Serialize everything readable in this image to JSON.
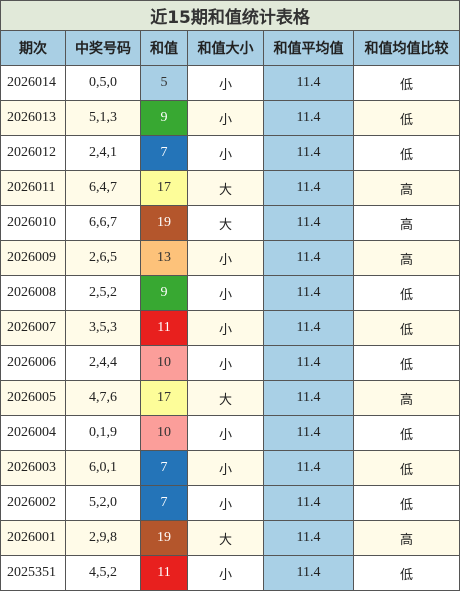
{
  "title": "近15期和值统计表格",
  "headers": [
    "期次",
    "中奖号码",
    "和值",
    "和值大小",
    "和值平均值",
    "和值均值比较"
  ],
  "rows": [
    {
      "period": "2026014",
      "numbers": "0,5,0",
      "sum": 5,
      "sum_color": "#a8cfe5",
      "size": "小",
      "avg": 11.4,
      "compare": "低"
    },
    {
      "period": "2026013",
      "numbers": "5,1,3",
      "sum": 9,
      "sum_color": "#38a832",
      "size": "小",
      "avg": 11.4,
      "compare": "低"
    },
    {
      "period": "2026012",
      "numbers": "2,4,1",
      "sum": 7,
      "sum_color": "#2474b8",
      "size": "小",
      "avg": 11.4,
      "compare": "低"
    },
    {
      "period": "2026011",
      "numbers": "6,4,7",
      "sum": 17,
      "sum_color": "#fdfd99",
      "size": "大",
      "avg": 11.4,
      "compare": "高"
    },
    {
      "period": "2026010",
      "numbers": "6,6,7",
      "sum": 19,
      "sum_color": "#b4562c",
      "size": "大",
      "avg": 11.4,
      "compare": "高"
    },
    {
      "period": "2026009",
      "numbers": "2,6,5",
      "sum": 13,
      "sum_color": "#fdc27a",
      "size": "小",
      "avg": 11.4,
      "compare": "高"
    },
    {
      "period": "2026008",
      "numbers": "2,5,2",
      "sum": 9,
      "sum_color": "#38a832",
      "size": "小",
      "avg": 11.4,
      "compare": "低"
    },
    {
      "period": "2026007",
      "numbers": "3,5,3",
      "sum": 11,
      "sum_color": "#e8201e",
      "size": "小",
      "avg": 11.4,
      "compare": "低"
    },
    {
      "period": "2026006",
      "numbers": "2,4,4",
      "sum": 10,
      "sum_color": "#fb9e9a",
      "size": "小",
      "avg": 11.4,
      "compare": "低"
    },
    {
      "period": "2026005",
      "numbers": "4,7,6",
      "sum": 17,
      "sum_color": "#fdfd99",
      "size": "大",
      "avg": 11.4,
      "compare": "高"
    },
    {
      "period": "2026004",
      "numbers": "0,1,9",
      "sum": 10,
      "sum_color": "#fb9e9a",
      "size": "小",
      "avg": 11.4,
      "compare": "低"
    },
    {
      "period": "2026003",
      "numbers": "6,0,1",
      "sum": 7,
      "sum_color": "#2474b8",
      "size": "小",
      "avg": 11.4,
      "compare": "低"
    },
    {
      "period": "2026002",
      "numbers": "5,2,0",
      "sum": 7,
      "sum_color": "#2474b8",
      "size": "小",
      "avg": 11.4,
      "compare": "低"
    },
    {
      "period": "2026001",
      "numbers": "2,9,8",
      "sum": 19,
      "sum_color": "#b4562c",
      "size": "大",
      "avg": 11.4,
      "compare": "高"
    },
    {
      "period": "2025351",
      "numbers": "4,5,2",
      "sum": 11,
      "sum_color": "#e8201e",
      "size": "小",
      "avg": 11.4,
      "compare": "低"
    }
  ]
}
